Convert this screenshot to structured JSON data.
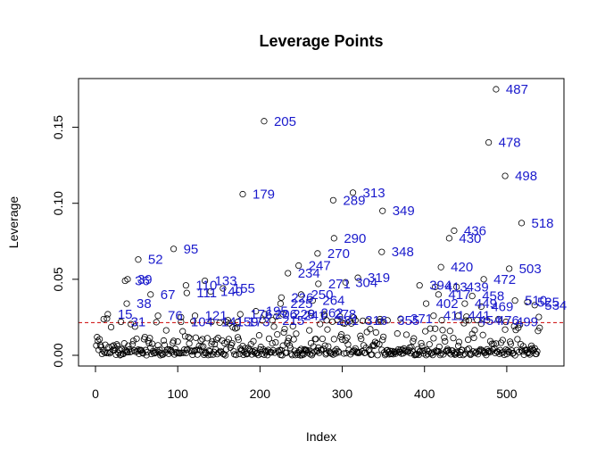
{
  "chart_data": {
    "type": "scatter",
    "title": "Leverage Points",
    "xlabel": "Index",
    "ylabel": "Leverage",
    "xlim": [
      0,
      550
    ],
    "ylim": [
      0,
      0.175
    ],
    "x_ticks": [
      0,
      100,
      200,
      300,
      400,
      500
    ],
    "y_ticks": [
      0.0,
      0.05,
      0.1,
      0.15
    ],
    "y_tick_labels": [
      "0.00",
      "0.05",
      "0.10",
      "0.15"
    ],
    "threshold": 0.0215,
    "point_color": "#000000",
    "label_color": "#1a1acc",
    "threshold_color": "#cc0000",
    "grid": false,
    "labeled_points": [
      {
        "x": 487,
        "y": 0.175,
        "label": "487"
      },
      {
        "x": 205,
        "y": 0.154,
        "label": "205"
      },
      {
        "x": 478,
        "y": 0.14,
        "label": "478"
      },
      {
        "x": 498,
        "y": 0.118,
        "label": "498"
      },
      {
        "x": 313,
        "y": 0.107,
        "label": "313"
      },
      {
        "x": 179,
        "y": 0.106,
        "label": "179"
      },
      {
        "x": 289,
        "y": 0.102,
        "label": "289"
      },
      {
        "x": 349,
        "y": 0.095,
        "label": "349"
      },
      {
        "x": 518,
        "y": 0.087,
        "label": "518"
      },
      {
        "x": 436,
        "y": 0.082,
        "label": "436"
      },
      {
        "x": 290,
        "y": 0.077,
        "label": "290"
      },
      {
        "x": 430,
        "y": 0.077,
        "label": "430"
      },
      {
        "x": 95,
        "y": 0.07,
        "label": "95"
      },
      {
        "x": 348,
        "y": 0.068,
        "label": "348"
      },
      {
        "x": 270,
        "y": 0.067,
        "label": "270"
      },
      {
        "x": 52,
        "y": 0.063,
        "label": "52"
      },
      {
        "x": 247,
        "y": 0.059,
        "label": "247"
      },
      {
        "x": 420,
        "y": 0.058,
        "label": "420"
      },
      {
        "x": 503,
        "y": 0.057,
        "label": "503"
      },
      {
        "x": 234,
        "y": 0.054,
        "label": "234"
      },
      {
        "x": 39,
        "y": 0.05,
        "label": "39"
      },
      {
        "x": 36,
        "y": 0.049,
        "label": "36"
      },
      {
        "x": 319,
        "y": 0.051,
        "label": "319"
      },
      {
        "x": 472,
        "y": 0.05,
        "label": "472"
      },
      {
        "x": 133,
        "y": 0.049,
        "label": "133"
      },
      {
        "x": 304,
        "y": 0.048,
        "label": "304"
      },
      {
        "x": 271,
        "y": 0.047,
        "label": "271"
      },
      {
        "x": 110,
        "y": 0.046,
        "label": "110"
      },
      {
        "x": 394,
        "y": 0.046,
        "label": "394"
      },
      {
        "x": 413,
        "y": 0.045,
        "label": "413"
      },
      {
        "x": 439,
        "y": 0.045,
        "label": "439"
      },
      {
        "x": 155,
        "y": 0.044,
        "label": "155"
      },
      {
        "x": 140,
        "y": 0.042,
        "label": "140"
      },
      {
        "x": 111,
        "y": 0.041,
        "label": "111"
      },
      {
        "x": 67,
        "y": 0.04,
        "label": "67"
      },
      {
        "x": 250,
        "y": 0.04,
        "label": "250"
      },
      {
        "x": 458,
        "y": 0.039,
        "label": "458"
      },
      {
        "x": 417,
        "y": 0.04,
        "label": "417"
      },
      {
        "x": 226,
        "y": 0.038,
        "label": "226"
      },
      {
        "x": 264,
        "y": 0.036,
        "label": "264"
      },
      {
        "x": 510,
        "y": 0.036,
        "label": "510"
      },
      {
        "x": 525,
        "y": 0.035,
        "label": "525"
      },
      {
        "x": 38,
        "y": 0.034,
        "label": "38"
      },
      {
        "x": 225,
        "y": 0.034,
        "label": "225"
      },
      {
        "x": 402,
        "y": 0.034,
        "label": "402"
      },
      {
        "x": 449,
        "y": 0.034,
        "label": "449"
      },
      {
        "x": 534,
        "y": 0.033,
        "label": "534"
      },
      {
        "x": 469,
        "y": 0.032,
        "label": "469"
      },
      {
        "x": 195,
        "y": 0.029,
        "label": "195"
      },
      {
        "x": 176,
        "y": 0.027,
        "label": "176"
      },
      {
        "x": 262,
        "y": 0.028,
        "label": "262"
      },
      {
        "x": 278,
        "y": 0.027,
        "label": "278"
      },
      {
        "x": 15,
        "y": 0.027,
        "label": "15"
      },
      {
        "x": 206,
        "y": 0.027,
        "label": "206"
      },
      {
        "x": 228,
        "y": 0.027,
        "label": "228"
      },
      {
        "x": 121,
        "y": 0.026,
        "label": "121"
      },
      {
        "x": 241,
        "y": 0.026,
        "label": "241"
      },
      {
        "x": 411,
        "y": 0.026,
        "label": "411"
      },
      {
        "x": 76,
        "y": 0.026,
        "label": "76"
      },
      {
        "x": 441,
        "y": 0.026,
        "label": "441"
      },
      {
        "x": 31,
        "y": 0.022,
        "label": "31"
      },
      {
        "x": 104,
        "y": 0.022,
        "label": "104"
      },
      {
        "x": 141,
        "y": 0.022,
        "label": "141"
      },
      {
        "x": 159,
        "y": 0.022,
        "label": "159"
      },
      {
        "x": 173,
        "y": 0.022,
        "label": "173"
      },
      {
        "x": 281,
        "y": 0.023,
        "label": "281"
      },
      {
        "x": 215,
        "y": 0.023,
        "label": "215"
      },
      {
        "x": 316,
        "y": 0.023,
        "label": "316"
      },
      {
        "x": 355,
        "y": 0.023,
        "label": "355"
      },
      {
        "x": 371,
        "y": 0.024,
        "label": "371"
      },
      {
        "x": 454,
        "y": 0.023,
        "label": "454"
      },
      {
        "x": 476,
        "y": 0.023,
        "label": "476"
      },
      {
        "x": 499,
        "y": 0.022,
        "label": "499"
      }
    ]
  }
}
